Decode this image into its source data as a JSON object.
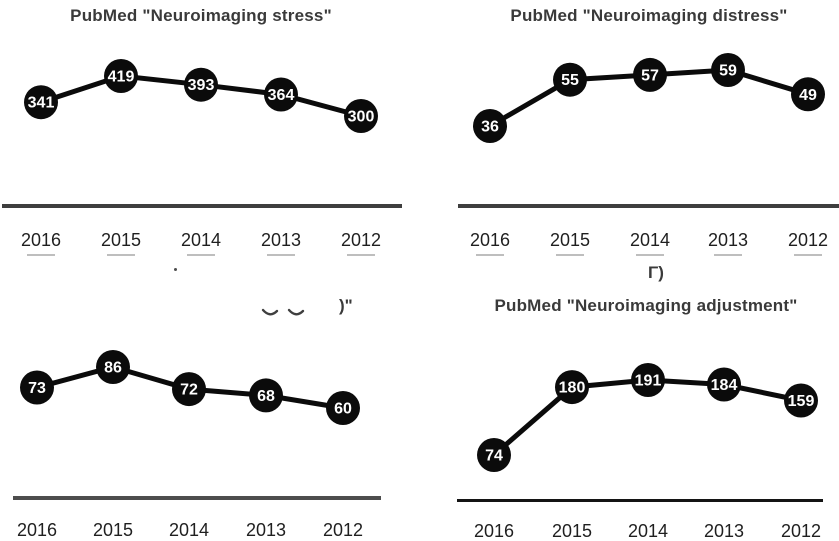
{
  "figure": {
    "description": "Four PubMed yearly publication-count line charts"
  },
  "chart_data": [
    {
      "type": "line",
      "title": "PubMed \"Neuroimaging stress\"",
      "categories": [
        "2016",
        "2015",
        "2014",
        "2013",
        "2012"
      ],
      "values": [
        341,
        419,
        393,
        364,
        300
      ],
      "xlabel": "",
      "ylabel": "",
      "legend": "none",
      "data_labels": "value shown inside each marker",
      "x_axis_note": "years in descending order left to right"
    },
    {
      "type": "line",
      "title": "PubMed \"Neuroimaging distress\"",
      "categories": [
        "2016",
        "2015",
        "2014",
        "2013",
        "2012"
      ],
      "values": [
        36,
        55,
        57,
        59,
        49
      ],
      "xlabel": "",
      "ylabel": "",
      "legend": "none",
      "data_labels": "value shown inside each marker",
      "x_axis_note": "years in descending order left to right"
    },
    {
      "type": "line",
      "title": "",
      "categories": [
        "2016",
        "2015",
        "2014",
        "2013",
        "2012"
      ],
      "values": [
        73,
        86,
        72,
        68,
        60
      ],
      "xlabel": "",
      "ylabel": "",
      "legend": "none",
      "data_labels": "value shown inside each marker",
      "x_axis_note": "years in descending order left to right; title cropped in screenshot, only glyph fragments visible"
    },
    {
      "type": "line",
      "title": "PubMed \"Neuroimaging adjustment\"",
      "categories": [
        "2016",
        "2015",
        "2014",
        "2013",
        "2012"
      ],
      "values": [
        74,
        180,
        191,
        184,
        159
      ],
      "xlabel": "",
      "ylabel": "",
      "legend": "none",
      "data_labels": "value shown inside each marker",
      "x_axis_note": "years in descending order left to right"
    }
  ],
  "fragments": {
    "cropped_title_end_quote": ")\"",
    "cropped_section_marker": "Γ)"
  },
  "colors": {
    "marker_fill": "#0b0b0b",
    "series_line": "#0b0b0b",
    "value_text": "#ffffff",
    "title_text": "#3a3a3a",
    "year_text": "#1f1f1f",
    "axis_top": "#3e3e3e",
    "axis_bottom_left": "#4d4d4d",
    "axis_bottom_right": "#141414",
    "fragment_text": "#3a3a3a",
    "ghost_dash": "#a8a8a8"
  }
}
